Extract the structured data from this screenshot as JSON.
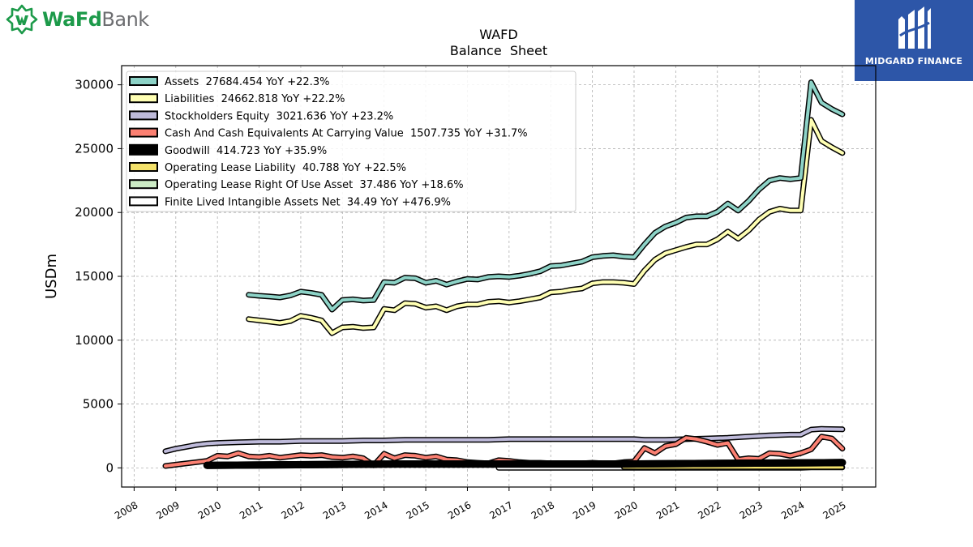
{
  "brand": {
    "logo_word1": "WaFd",
    "logo_word2": "Bank",
    "badge_text": "MIDGARD FINANCE",
    "logo_color": "#1d9a4a",
    "badge_color": "#2d56a8"
  },
  "chart_data": {
    "type": "line",
    "title": "WAFD",
    "subtitle": "Balance  Sheet",
    "ylabel": "USDm",
    "xlabel": "",
    "xlim": [
      2007.7,
      2025.8
    ],
    "ylim": [
      -1500,
      31500
    ],
    "grid": true,
    "legend_position": "top-left",
    "x_ticks": [
      "2008",
      "2009",
      "2010",
      "2011",
      "2012",
      "2013",
      "2014",
      "2015",
      "2016",
      "2017",
      "2018",
      "2019",
      "2020",
      "2021",
      "2022",
      "2023",
      "2024",
      "2025"
    ],
    "y_ticks": [
      "0",
      "5000",
      "10000",
      "15000",
      "20000",
      "25000",
      "30000"
    ],
    "series": [
      {
        "name": "Assets  27684.454 YoY +22.3%",
        "color": "#8dd3c7",
        "points": [
          [
            2010.75,
            13550
          ],
          [
            2011.0,
            13480
          ],
          [
            2011.25,
            13420
          ],
          [
            2011.5,
            13350
          ],
          [
            2011.75,
            13500
          ],
          [
            2012.0,
            13800
          ],
          [
            2012.25,
            13700
          ],
          [
            2012.5,
            13550
          ],
          [
            2012.75,
            12400
          ],
          [
            2013.0,
            13150
          ],
          [
            2013.25,
            13200
          ],
          [
            2013.5,
            13100
          ],
          [
            2013.75,
            13150
          ],
          [
            2014.0,
            14550
          ],
          [
            2014.25,
            14500
          ],
          [
            2014.5,
            14900
          ],
          [
            2014.75,
            14850
          ],
          [
            2015.0,
            14500
          ],
          [
            2015.25,
            14650
          ],
          [
            2015.5,
            14350
          ],
          [
            2015.75,
            14600
          ],
          [
            2016.0,
            14800
          ],
          [
            2016.25,
            14750
          ],
          [
            2016.5,
            14950
          ],
          [
            2016.75,
            15000
          ],
          [
            2017.0,
            14950
          ],
          [
            2017.25,
            15050
          ],
          [
            2017.5,
            15200
          ],
          [
            2017.75,
            15400
          ],
          [
            2018.0,
            15800
          ],
          [
            2018.25,
            15850
          ],
          [
            2018.5,
            16000
          ],
          [
            2018.75,
            16150
          ],
          [
            2019.0,
            16500
          ],
          [
            2019.25,
            16600
          ],
          [
            2019.5,
            16650
          ],
          [
            2019.75,
            16550
          ],
          [
            2020.0,
            16500
          ],
          [
            2020.25,
            17500
          ],
          [
            2020.5,
            18400
          ],
          [
            2020.75,
            18900
          ],
          [
            2021.0,
            19200
          ],
          [
            2021.25,
            19600
          ],
          [
            2021.5,
            19700
          ],
          [
            2021.75,
            19700
          ],
          [
            2022.0,
            20050
          ],
          [
            2022.25,
            20700
          ],
          [
            2022.5,
            20150
          ],
          [
            2022.75,
            20900
          ],
          [
            2023.0,
            21800
          ],
          [
            2023.25,
            22500
          ],
          [
            2023.5,
            22700
          ],
          [
            2023.75,
            22600
          ],
          [
            2024.0,
            22700
          ],
          [
            2024.25,
            30200
          ],
          [
            2024.5,
            28600
          ],
          [
            2024.75,
            28100
          ],
          [
            2025.0,
            27684
          ]
        ]
      },
      {
        "name": "Liabilities  24662.818 YoY +22.2%",
        "color": "#ffffb3",
        "points": [
          [
            2010.75,
            11650
          ],
          [
            2011.0,
            11550
          ],
          [
            2011.25,
            11450
          ],
          [
            2011.5,
            11350
          ],
          [
            2011.75,
            11500
          ],
          [
            2012.0,
            11900
          ],
          [
            2012.25,
            11750
          ],
          [
            2012.5,
            11550
          ],
          [
            2012.75,
            10550
          ],
          [
            2013.0,
            11000
          ],
          [
            2013.25,
            11050
          ],
          [
            2013.5,
            10950
          ],
          [
            2013.75,
            11000
          ],
          [
            2014.0,
            12450
          ],
          [
            2014.25,
            12350
          ],
          [
            2014.5,
            12900
          ],
          [
            2014.75,
            12850
          ],
          [
            2015.0,
            12550
          ],
          [
            2015.25,
            12650
          ],
          [
            2015.5,
            12350
          ],
          [
            2015.75,
            12650
          ],
          [
            2016.0,
            12800
          ],
          [
            2016.25,
            12800
          ],
          [
            2016.5,
            13000
          ],
          [
            2016.75,
            13050
          ],
          [
            2017.0,
            12950
          ],
          [
            2017.25,
            13050
          ],
          [
            2017.5,
            13200
          ],
          [
            2017.75,
            13350
          ],
          [
            2018.0,
            13750
          ],
          [
            2018.25,
            13800
          ],
          [
            2018.5,
            13950
          ],
          [
            2018.75,
            14050
          ],
          [
            2019.0,
            14450
          ],
          [
            2019.25,
            14550
          ],
          [
            2019.5,
            14550
          ],
          [
            2019.75,
            14500
          ],
          [
            2020.0,
            14400
          ],
          [
            2020.25,
            15450
          ],
          [
            2020.5,
            16300
          ],
          [
            2020.75,
            16800
          ],
          [
            2021.0,
            17050
          ],
          [
            2021.25,
            17300
          ],
          [
            2021.5,
            17500
          ],
          [
            2021.75,
            17500
          ],
          [
            2022.0,
            17900
          ],
          [
            2022.25,
            18500
          ],
          [
            2022.5,
            17950
          ],
          [
            2022.75,
            18600
          ],
          [
            2023.0,
            19450
          ],
          [
            2023.25,
            20050
          ],
          [
            2023.5,
            20300
          ],
          [
            2023.75,
            20150
          ],
          [
            2024.0,
            20150
          ],
          [
            2024.25,
            27250
          ],
          [
            2024.5,
            25600
          ],
          [
            2024.75,
            25100
          ],
          [
            2025.0,
            24662
          ]
        ]
      },
      {
        "name": "Stockholders Equity  3021.636 YoY +23.2%",
        "color": "#bebada",
        "points": [
          [
            2008.75,
            1300
          ],
          [
            2009.0,
            1500
          ],
          [
            2009.25,
            1650
          ],
          [
            2009.5,
            1800
          ],
          [
            2009.75,
            1900
          ],
          [
            2010.0,
            1950
          ],
          [
            2010.5,
            2000
          ],
          [
            2011.0,
            2050
          ],
          [
            2011.5,
            2050
          ],
          [
            2012.0,
            2100
          ],
          [
            2012.5,
            2100
          ],
          [
            2013.0,
            2100
          ],
          [
            2013.5,
            2150
          ],
          [
            2014.0,
            2150
          ],
          [
            2014.5,
            2200
          ],
          [
            2015.0,
            2200
          ],
          [
            2015.5,
            2200
          ],
          [
            2016.0,
            2200
          ],
          [
            2016.5,
            2200
          ],
          [
            2017.0,
            2250
          ],
          [
            2017.5,
            2250
          ],
          [
            2018.0,
            2250
          ],
          [
            2018.5,
            2250
          ],
          [
            2019.0,
            2250
          ],
          [
            2019.5,
            2250
          ],
          [
            2020.0,
            2250
          ],
          [
            2020.25,
            2200
          ],
          [
            2020.75,
            2200
          ],
          [
            2021.25,
            2250
          ],
          [
            2021.75,
            2300
          ],
          [
            2022.25,
            2350
          ],
          [
            2022.75,
            2450
          ],
          [
            2023.25,
            2550
          ],
          [
            2023.75,
            2600
          ],
          [
            2024.0,
            2600
          ],
          [
            2024.25,
            3000
          ],
          [
            2024.5,
            3050
          ],
          [
            2025.0,
            3021
          ]
        ]
      },
      {
        "name": "Cash And Cash Equivalents At Carrying Value  1507.735 YoY +31.7%",
        "color": "#fb8072",
        "points": [
          [
            2008.75,
            150
          ],
          [
            2009.0,
            250
          ],
          [
            2009.5,
            450
          ],
          [
            2009.75,
            550
          ],
          [
            2010.0,
            950
          ],
          [
            2010.25,
            900
          ],
          [
            2010.5,
            1150
          ],
          [
            2010.75,
            900
          ],
          [
            2011.0,
            850
          ],
          [
            2011.25,
            950
          ],
          [
            2011.5,
            800
          ],
          [
            2011.75,
            900
          ],
          [
            2012.0,
            1000
          ],
          [
            2012.25,
            950
          ],
          [
            2012.5,
            1000
          ],
          [
            2012.75,
            850
          ],
          [
            2013.0,
            800
          ],
          [
            2013.25,
            900
          ],
          [
            2013.5,
            750
          ],
          [
            2013.75,
            200
          ],
          [
            2014.0,
            1100
          ],
          [
            2014.25,
            750
          ],
          [
            2014.5,
            1000
          ],
          [
            2014.75,
            950
          ],
          [
            2015.0,
            800
          ],
          [
            2015.25,
            900
          ],
          [
            2015.5,
            650
          ],
          [
            2015.75,
            600
          ],
          [
            2016.0,
            450
          ],
          [
            2016.25,
            400
          ],
          [
            2016.5,
            350
          ],
          [
            2016.75,
            600
          ],
          [
            2017.0,
            550
          ],
          [
            2017.25,
            450
          ],
          [
            2017.5,
            400
          ],
          [
            2017.75,
            400
          ],
          [
            2018.0,
            350
          ],
          [
            2018.25,
            350
          ],
          [
            2018.5,
            350
          ],
          [
            2018.75,
            350
          ],
          [
            2019.0,
            400
          ],
          [
            2019.25,
            350
          ],
          [
            2019.5,
            350
          ],
          [
            2019.75,
            450
          ],
          [
            2020.0,
            500
          ],
          [
            2020.25,
            1550
          ],
          [
            2020.5,
            1150
          ],
          [
            2020.75,
            1700
          ],
          [
            2021.0,
            1850
          ],
          [
            2021.25,
            2350
          ],
          [
            2021.5,
            2250
          ],
          [
            2021.75,
            2050
          ],
          [
            2022.0,
            1800
          ],
          [
            2022.25,
            1950
          ],
          [
            2022.5,
            650
          ],
          [
            2022.75,
            750
          ],
          [
            2023.0,
            700
          ],
          [
            2023.25,
            1150
          ],
          [
            2023.5,
            1100
          ],
          [
            2023.75,
            950
          ],
          [
            2024.0,
            1150
          ],
          [
            2024.25,
            1450
          ],
          [
            2024.5,
            2450
          ],
          [
            2024.75,
            2300
          ],
          [
            2025.0,
            1508
          ]
        ]
      },
      {
        "name": "Goodwill  414.723 YoY +35.9%",
        "color": "#000000",
        "points": [
          [
            2009.75,
            200
          ],
          [
            2014.25,
            300
          ],
          [
            2016.75,
            300
          ],
          [
            2019.75,
            300
          ],
          [
            2025.0,
            415
          ]
        ]
      },
      {
        "name": "Operating Lease Liability  40.788 YoY +22.5%",
        "color": "#f4e26b",
        "points": [
          [
            2019.75,
            40
          ],
          [
            2025.0,
            41
          ]
        ]
      },
      {
        "name": "Operating Lease Right Of Use Asset  37.486 YoY +18.6%",
        "color": "#ccebc5",
        "points": [
          [
            2019.75,
            37
          ],
          [
            2025.0,
            37
          ]
        ]
      },
      {
        "name": "Finite Lived Intangible Assets Net  34.49 YoY +476.9%",
        "color": "#ffffff",
        "points": [
          [
            2016.75,
            5
          ],
          [
            2024.0,
            5
          ],
          [
            2024.25,
            35
          ],
          [
            2025.0,
            34
          ]
        ]
      }
    ]
  }
}
